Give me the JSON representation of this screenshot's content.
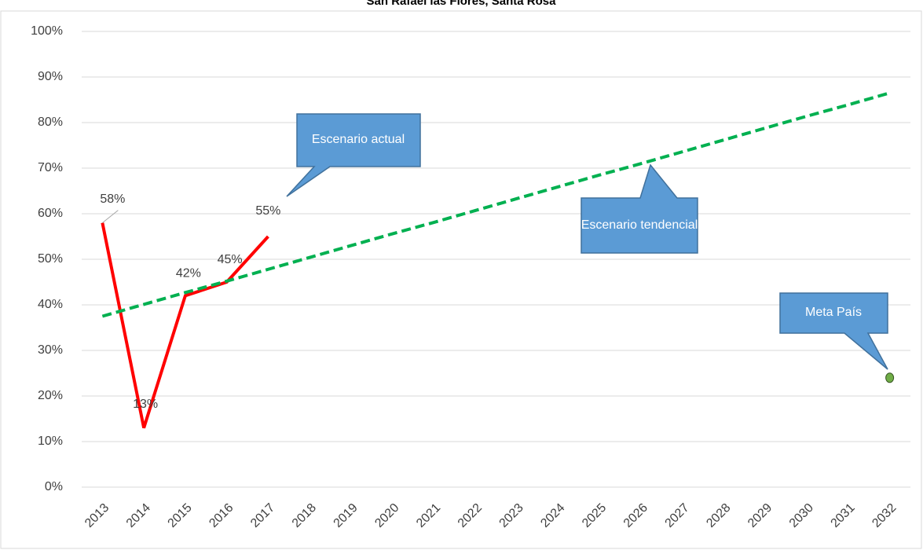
{
  "chart_data": {
    "type": "line",
    "title": "San Rafael las Flores, Santa Rosa",
    "categories": [
      "2013",
      "2014",
      "2015",
      "2016",
      "2017",
      "2018",
      "2019",
      "2020",
      "2021",
      "2022",
      "2023",
      "2024",
      "2025",
      "2026",
      "2027",
      "2028",
      "2029",
      "2030",
      "2031",
      "2032"
    ],
    "series": [
      {
        "name": "Escenario actual",
        "color": "#ff0000",
        "style": "solid",
        "values": [
          58,
          13,
          42,
          45,
          55,
          null,
          null,
          null,
          null,
          null,
          null,
          null,
          null,
          null,
          null,
          null,
          null,
          null,
          null,
          null
        ],
        "value_labels": [
          "58%",
          "13%",
          "42%",
          "45%",
          "55%",
          null,
          null,
          null,
          null,
          null,
          null,
          null,
          null,
          null,
          null,
          null,
          null,
          null,
          null,
          null
        ]
      },
      {
        "name": "Escenario tendencial",
        "color": "#00b050",
        "style": "dashed",
        "values": [
          37.5,
          40.1,
          42.7,
          45.2,
          47.8,
          50.4,
          53.0,
          55.6,
          58.1,
          60.7,
          63.3,
          65.9,
          68.5,
          71.0,
          73.6,
          76.2,
          78.8,
          81.4,
          83.9,
          86.5
        ]
      },
      {
        "name": "Meta  País",
        "color": "#70ad47",
        "style": "point",
        "values": [
          null,
          null,
          null,
          null,
          null,
          null,
          null,
          null,
          null,
          null,
          null,
          null,
          null,
          null,
          null,
          null,
          null,
          null,
          null,
          24
        ]
      }
    ],
    "ylim": [
      0,
      100
    ],
    "yticks": [
      {
        "value": 0,
        "label": "0%"
      },
      {
        "value": 10,
        "label": "10%"
      },
      {
        "value": 20,
        "label": "20%"
      },
      {
        "value": 30,
        "label": "30%"
      },
      {
        "value": 40,
        "label": "40%"
      },
      {
        "value": 50,
        "label": "50%"
      },
      {
        "value": 60,
        "label": "60%"
      },
      {
        "value": 70,
        "label": "70%"
      },
      {
        "value": 80,
        "label": "80%"
      },
      {
        "value": 90,
        "label": "90%"
      },
      {
        "value": 100,
        "label": "100%"
      }
    ],
    "grid": true
  }
}
